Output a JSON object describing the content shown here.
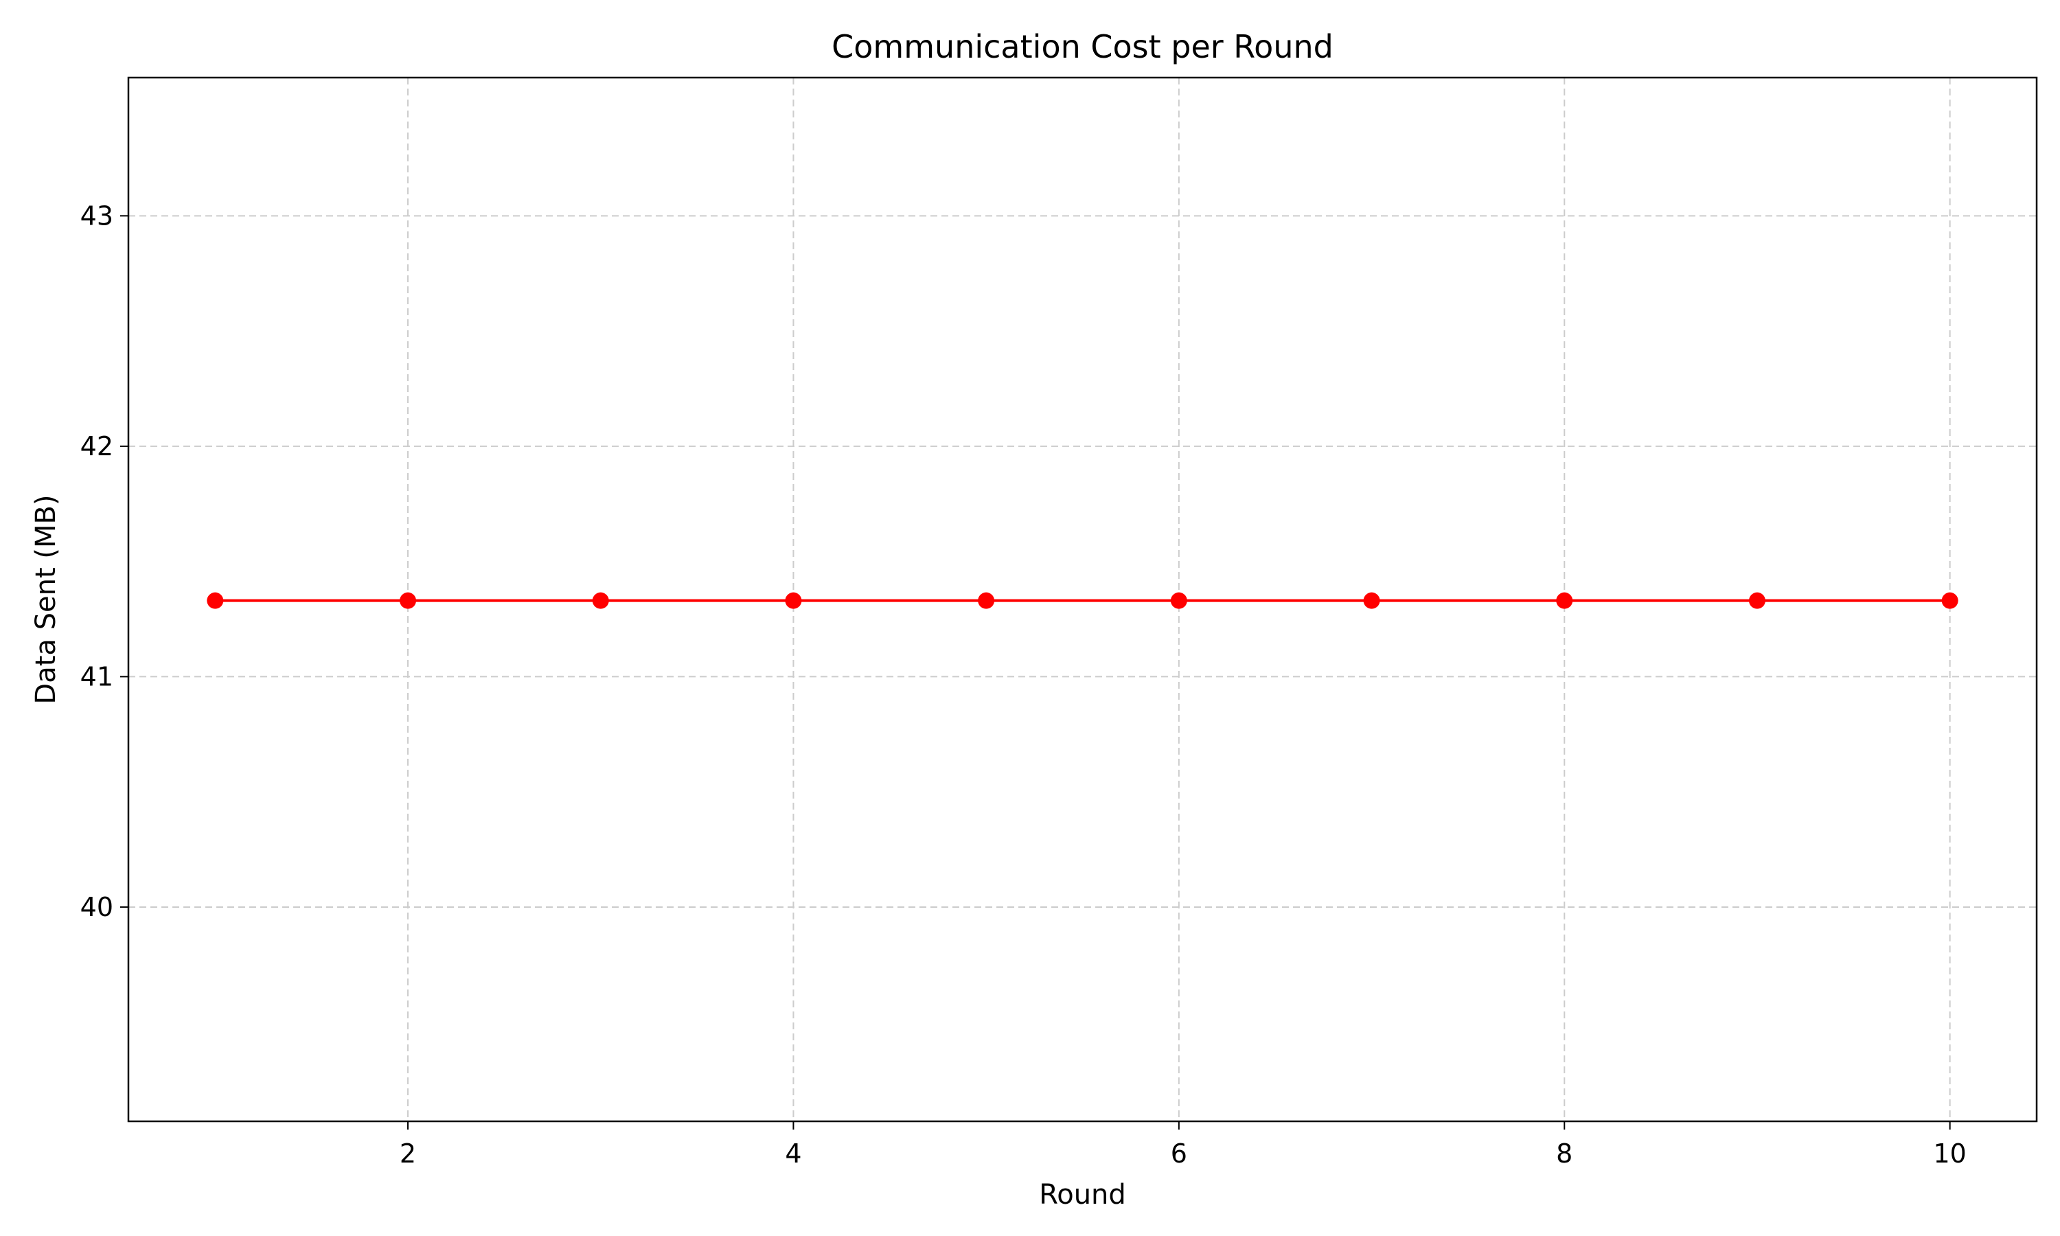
{
  "chart_data": {
    "type": "line",
    "title": "Communication Cost per Round",
    "xlabel": "Round",
    "ylabel": "Data Sent (MB)",
    "x": [
      1,
      2,
      3,
      4,
      5,
      6,
      7,
      8,
      9,
      10
    ],
    "series": [
      {
        "color": "#ff0000",
        "marker": "circle",
        "values": [
          41.33,
          41.33,
          41.33,
          41.33,
          41.33,
          41.33,
          41.33,
          41.33,
          41.33,
          41.33
        ]
      }
    ],
    "xlim": [
      0.55,
      10.45
    ],
    "ylim": [
      39.07,
      43.6
    ],
    "xticks": [
      2,
      4,
      6,
      8,
      10
    ],
    "yticks": [
      40,
      41,
      42,
      43
    ],
    "grid": true
  }
}
